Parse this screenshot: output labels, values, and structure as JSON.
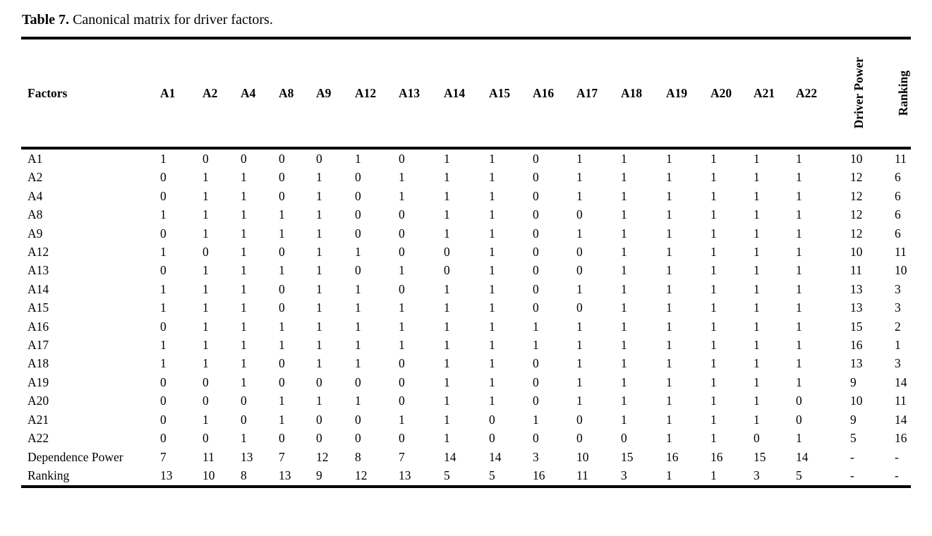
{
  "caption": {
    "label": "Table 7.",
    "text": " Canonical matrix for driver factors."
  },
  "table": {
    "factors_header": "Factors",
    "column_headers": [
      "A1",
      "A2",
      "A4",
      "A8",
      "A9",
      "A12",
      "A13",
      "A14",
      "A15",
      "A16",
      "A17",
      "A18",
      "A19",
      "A20",
      "A21",
      "A22"
    ],
    "driver_power_header": "Driver Power",
    "ranking_header": "Ranking",
    "rows": [
      {
        "label": "A1",
        "values": [
          1,
          0,
          0,
          0,
          0,
          1,
          0,
          1,
          1,
          0,
          1,
          1,
          1,
          1,
          1,
          1
        ],
        "driver_power": "10",
        "ranking": "11"
      },
      {
        "label": "A2",
        "values": [
          0,
          1,
          1,
          0,
          1,
          0,
          1,
          1,
          1,
          0,
          1,
          1,
          1,
          1,
          1,
          1
        ],
        "driver_power": "12",
        "ranking": "6"
      },
      {
        "label": "A4",
        "values": [
          0,
          1,
          1,
          0,
          1,
          0,
          1,
          1,
          1,
          0,
          1,
          1,
          1,
          1,
          1,
          1
        ],
        "driver_power": "12",
        "ranking": "6"
      },
      {
        "label": "A8",
        "values": [
          1,
          1,
          1,
          1,
          1,
          0,
          0,
          1,
          1,
          0,
          0,
          1,
          1,
          1,
          1,
          1
        ],
        "driver_power": "12",
        "ranking": "6"
      },
      {
        "label": "A9",
        "values": [
          0,
          1,
          1,
          1,
          1,
          0,
          0,
          1,
          1,
          0,
          1,
          1,
          1,
          1,
          1,
          1
        ],
        "driver_power": "12",
        "ranking": "6"
      },
      {
        "label": "A12",
        "values": [
          1,
          0,
          1,
          0,
          1,
          1,
          0,
          0,
          1,
          0,
          0,
          1,
          1,
          1,
          1,
          1
        ],
        "driver_power": "10",
        "ranking": "11"
      },
      {
        "label": "A13",
        "values": [
          0,
          1,
          1,
          1,
          1,
          0,
          1,
          0,
          1,
          0,
          0,
          1,
          1,
          1,
          1,
          1
        ],
        "driver_power": "11",
        "ranking": "10"
      },
      {
        "label": "A14",
        "values": [
          1,
          1,
          1,
          0,
          1,
          1,
          0,
          1,
          1,
          0,
          1,
          1,
          1,
          1,
          1,
          1
        ],
        "driver_power": "13",
        "ranking": "3"
      },
      {
        "label": "A15",
        "values": [
          1,
          1,
          1,
          0,
          1,
          1,
          1,
          1,
          1,
          0,
          0,
          1,
          1,
          1,
          1,
          1
        ],
        "driver_power": "13",
        "ranking": "3"
      },
      {
        "label": "A16",
        "values": [
          0,
          1,
          1,
          1,
          1,
          1,
          1,
          1,
          1,
          1,
          1,
          1,
          1,
          1,
          1,
          1
        ],
        "driver_power": "15",
        "ranking": "2"
      },
      {
        "label": "A17",
        "values": [
          1,
          1,
          1,
          1,
          1,
          1,
          1,
          1,
          1,
          1,
          1,
          1,
          1,
          1,
          1,
          1
        ],
        "driver_power": "16",
        "ranking": "1"
      },
      {
        "label": "A18",
        "values": [
          1,
          1,
          1,
          0,
          1,
          1,
          0,
          1,
          1,
          0,
          1,
          1,
          1,
          1,
          1,
          1
        ],
        "driver_power": "13",
        "ranking": "3"
      },
      {
        "label": "A19",
        "values": [
          0,
          0,
          1,
          0,
          0,
          0,
          0,
          1,
          1,
          0,
          1,
          1,
          1,
          1,
          1,
          1
        ],
        "driver_power": "9",
        "ranking": "14"
      },
      {
        "label": "A20",
        "values": [
          0,
          0,
          0,
          1,
          1,
          1,
          0,
          1,
          1,
          0,
          1,
          1,
          1,
          1,
          1,
          0
        ],
        "driver_power": "10",
        "ranking": "11"
      },
      {
        "label": "A21",
        "values": [
          0,
          1,
          0,
          1,
          0,
          0,
          1,
          1,
          0,
          1,
          0,
          1,
          1,
          1,
          1,
          0
        ],
        "driver_power": "9",
        "ranking": "14"
      },
      {
        "label": "A22",
        "values": [
          0,
          0,
          1,
          0,
          0,
          0,
          0,
          1,
          0,
          0,
          0,
          0,
          1,
          1,
          0,
          1
        ],
        "driver_power": "5",
        "ranking": "16"
      }
    ],
    "footer_rows": [
      {
        "label": "Dependence Power",
        "values": [
          "7",
          "11",
          "13",
          "7",
          "12",
          "8",
          "7",
          "14",
          "14",
          "3",
          "10",
          "15",
          "16",
          "16",
          "15",
          "14"
        ],
        "driver_power": "-",
        "ranking": "-"
      },
      {
        "label": "Ranking",
        "values": [
          "13",
          "10",
          "8",
          "13",
          "9",
          "12",
          "13",
          "5",
          "5",
          "16",
          "11",
          "3",
          "1",
          "1",
          "3",
          "5"
        ],
        "driver_power": "-",
        "ranking": "-"
      }
    ]
  },
  "colors": {
    "text": "#000000",
    "background": "#ffffff",
    "rule": "#000000"
  }
}
